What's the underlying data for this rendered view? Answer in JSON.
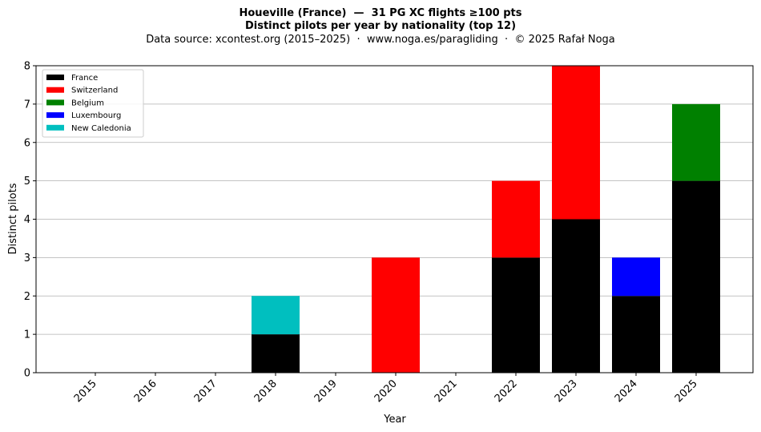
{
  "title": {
    "line1": "Houeville (France)  —  31 PG XC flights ≥100 pts",
    "line2": "Distinct pilots per year by nationality (top 12)",
    "line3": "Data source: xcontest.org (2015–2025)  ·  www.noga.es/paragliding  ·  © 2025 Rafał Noga"
  },
  "chart_data": {
    "type": "bar",
    "stacked": true,
    "title": "Houeville (France)  —  31 PG XC flights ≥100 pts",
    "subtitle": "Distinct pilots per year by nationality (top 12)",
    "xlabel": "Year",
    "ylabel": "Distinct pilots",
    "ylim": [
      0,
      8
    ],
    "yticks": [
      "0",
      "1",
      "2",
      "3",
      "4",
      "5",
      "6",
      "7",
      "8"
    ],
    "grid": "horizontal",
    "legend_position": "top-left",
    "categories": [
      "2015",
      "2016",
      "2017",
      "2018",
      "2019",
      "2020",
      "2021",
      "2022",
      "2023",
      "2024",
      "2025"
    ],
    "series": [
      {
        "name": "France",
        "color": "#000000",
        "values": [
          0,
          0,
          0,
          1,
          0,
          0,
          0,
          3,
          4,
          2,
          5
        ]
      },
      {
        "name": "Switzerland",
        "color": "#ff0000",
        "values": [
          0,
          0,
          0,
          0,
          0,
          3,
          0,
          2,
          4,
          0,
          0
        ]
      },
      {
        "name": "Belgium",
        "color": "#008000",
        "values": [
          0,
          0,
          0,
          0,
          0,
          0,
          0,
          0,
          0,
          0,
          2
        ]
      },
      {
        "name": "Luxembourg",
        "color": "#0000ff",
        "values": [
          0,
          0,
          0,
          0,
          0,
          0,
          0,
          0,
          0,
          1,
          0
        ]
      },
      {
        "name": "New Caledonia",
        "color": "#00bfbf",
        "values": [
          0,
          0,
          0,
          1,
          0,
          0,
          0,
          0,
          0,
          0,
          0
        ]
      }
    ]
  }
}
